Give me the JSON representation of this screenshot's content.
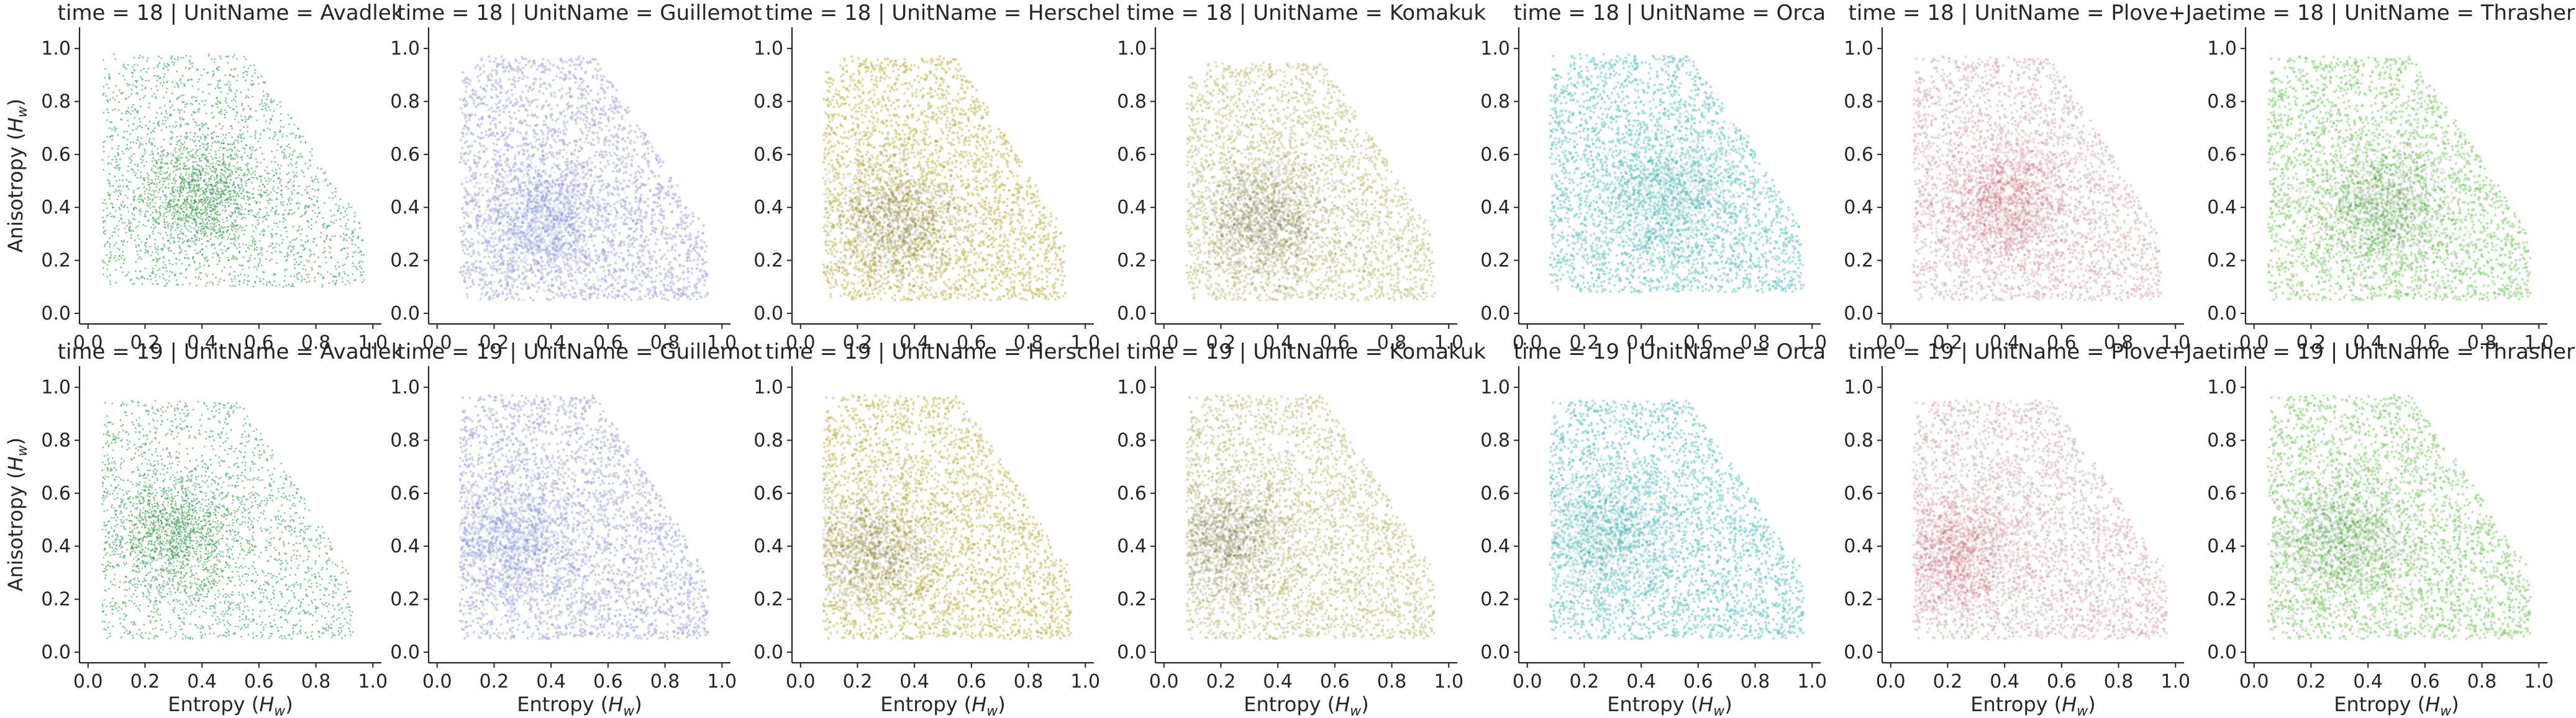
{
  "chart_data": {
    "type": "scatter",
    "layout": "facet-grid",
    "rows": [
      18,
      19
    ],
    "row_variable": "time",
    "col_variable": "UnitName",
    "columns": [
      "Avadlek",
      "Guillemot",
      "Herschel",
      "Komakuk",
      "Orca",
      "Plove+Jae",
      "Thrasher"
    ],
    "xlabel": "Entropy ($H_w$)",
    "ylabel": "Anisotropy ($H_w$)",
    "xlabel_parts": {
      "main": "Entropy (",
      "italic": "H",
      "sub": "w",
      "end": ")"
    },
    "ylabel_parts": {
      "main": "Anisotropy (",
      "italic": "H",
      "sub": "w",
      "end": ")"
    },
    "xlim": [
      -0.03,
      1.03
    ],
    "ylim": [
      -0.04,
      1.08
    ],
    "xticks": [
      "0.0",
      "0.2",
      "0.4",
      "0.6",
      "0.8",
      "1.0"
    ],
    "yticks": [
      "0.0",
      "0.2",
      "0.4",
      "0.6",
      "0.8",
      "1.0"
    ],
    "colors": {
      "Avadlek": "#4cba5e",
      "Guillemot": "#a6b0e4",
      "Herschel": "#c9bd5d",
      "Komakuk": "#c7c78a",
      "Orca": "#6ccac6",
      "Plove+Jae": "#dcb4b8",
      "Thrasher": "#86d172"
    },
    "density_core_colors": {
      "Avadlek": "#2f9a45",
      "Guillemot": "#6a7ed8",
      "Herschel": "#6d6a30",
      "Komakuk": "#5e5e3a",
      "Orca": "#3aa6a2",
      "Plove+Jae": "#c44a52",
      "Thrasher": "#3b8a3a"
    },
    "panels": [
      {
        "time": 18,
        "unit": "Avadlek",
        "title": "time = 18 | UnitName = Avadlek",
        "x_range": [
          0.05,
          0.97
        ],
        "y_range": [
          0.1,
          0.98
        ],
        "density_center": [
          0.4,
          0.45
        ],
        "sparse": true
      },
      {
        "time": 18,
        "unit": "Guillemot",
        "title": "time = 18 | UnitName = Guillemot",
        "x_range": [
          0.08,
          0.95
        ],
        "y_range": [
          0.05,
          0.97
        ],
        "density_center": [
          0.38,
          0.35
        ],
        "sparse": false
      },
      {
        "time": 18,
        "unit": "Herschel",
        "title": "time = 18 | UnitName = Herschel",
        "x_range": [
          0.08,
          0.93
        ],
        "y_range": [
          0.05,
          0.97
        ],
        "density_center": [
          0.33,
          0.35
        ],
        "sparse": false
      },
      {
        "time": 18,
        "unit": "Komakuk",
        "title": "time = 18 | UnitName = Komakuk",
        "x_range": [
          0.08,
          0.95
        ],
        "y_range": [
          0.05,
          0.95
        ],
        "density_center": [
          0.35,
          0.35
        ],
        "sparse": false
      },
      {
        "time": 18,
        "unit": "Orca",
        "title": "time = 18 | UnitName = Orca",
        "x_range": [
          0.08,
          0.97
        ],
        "y_range": [
          0.08,
          0.98
        ],
        "density_center": [
          0.5,
          0.45
        ],
        "sparse": false
      },
      {
        "time": 18,
        "unit": "Plove+Jae",
        "title": "time = 18 | UnitName = Plove+Jae",
        "x_range": [
          0.08,
          0.95
        ],
        "y_range": [
          0.05,
          0.97
        ],
        "density_center": [
          0.4,
          0.42
        ],
        "sparse": false
      },
      {
        "time": 18,
        "unit": "Thrasher",
        "title": "time = 18 | UnitName = Thrasher",
        "x_range": [
          0.05,
          0.97
        ],
        "y_range": [
          0.05,
          0.97
        ],
        "density_center": [
          0.45,
          0.4
        ],
        "sparse": false
      },
      {
        "time": 19,
        "unit": "Avadlek",
        "title": "time = 19 | UnitName = Avadlek",
        "x_range": [
          0.05,
          0.93
        ],
        "y_range": [
          0.05,
          0.95
        ],
        "density_center": [
          0.3,
          0.45
        ],
        "sparse": true
      },
      {
        "time": 19,
        "unit": "Guillemot",
        "title": "time = 19 | UnitName = Guillemot",
        "x_range": [
          0.08,
          0.95
        ],
        "y_range": [
          0.05,
          0.97
        ],
        "density_center": [
          0.25,
          0.42
        ],
        "sparse": false
      },
      {
        "time": 19,
        "unit": "Herschel",
        "title": "time = 19 | UnitName = Herschel",
        "x_range": [
          0.08,
          0.95
        ],
        "y_range": [
          0.05,
          0.97
        ],
        "density_center": [
          0.25,
          0.38
        ],
        "sparse": false
      },
      {
        "time": 19,
        "unit": "Komakuk",
        "title": "time = 19 | UnitName = Komakuk",
        "x_range": [
          0.08,
          0.95
        ],
        "y_range": [
          0.05,
          0.97
        ],
        "density_center": [
          0.22,
          0.42
        ],
        "sparse": false
      },
      {
        "time": 19,
        "unit": "Orca",
        "title": "time = 19 | UnitName = Orca",
        "x_range": [
          0.08,
          0.97
        ],
        "y_range": [
          0.05,
          0.95
        ],
        "density_center": [
          0.28,
          0.45
        ],
        "sparse": false
      },
      {
        "time": 19,
        "unit": "Plove+Jae",
        "title": "time = 19 | UnitName = Plove+Jae",
        "x_range": [
          0.08,
          0.97
        ],
        "y_range": [
          0.05,
          0.95
        ],
        "density_center": [
          0.22,
          0.38
        ],
        "sparse": false
      },
      {
        "time": 19,
        "unit": "Thrasher",
        "title": "time = 19 | UnitName = Thrasher",
        "x_range": [
          0.05,
          0.97
        ],
        "y_range": [
          0.05,
          0.97
        ],
        "density_center": [
          0.3,
          0.42
        ],
        "sparse": false
      }
    ],
    "grid": false,
    "legend": "none"
  }
}
